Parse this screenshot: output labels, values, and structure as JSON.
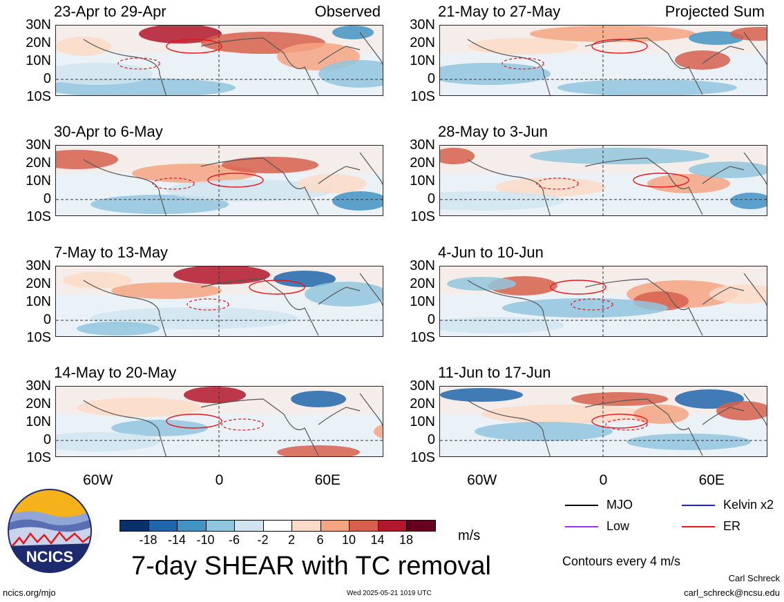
{
  "panels": [
    {
      "title": "23-Apr to 29-Apr",
      "corner": "Observed",
      "col": 0,
      "row": 0
    },
    {
      "title": "30-Apr to 6-May",
      "corner": "",
      "col": 0,
      "row": 1
    },
    {
      "title": "7-May to 13-May",
      "corner": "",
      "col": 0,
      "row": 2
    },
    {
      "title": "14-May to 20-May",
      "corner": "",
      "col": 0,
      "row": 3
    },
    {
      "title": "21-May to 27-May",
      "corner": "Projected Sum",
      "col": 1,
      "row": 0
    },
    {
      "title": "28-May to 3-Jun",
      "corner": "",
      "col": 1,
      "row": 1
    },
    {
      "title": "4-Jun to 10-Jun",
      "corner": "",
      "col": 1,
      "row": 2
    },
    {
      "title": "11-Jun to 17-Jun",
      "corner": "",
      "col": 1,
      "row": 3
    }
  ],
  "lat_labels": [
    "30N",
    "20N",
    "10N",
    "0",
    "10S"
  ],
  "lon_labels": [
    "60W",
    "0",
    "60E"
  ],
  "colorbar": {
    "colors": [
      "#08306b",
      "#2166ac",
      "#4393c3",
      "#92c5de",
      "#d1e5f0",
      "#ffffff",
      "#fddbc7",
      "#f4a582",
      "#d6604d",
      "#b2182b",
      "#67001f"
    ],
    "ticks": [
      "-18",
      "-14",
      "-10",
      "-6",
      "-2",
      "2",
      "6",
      "10",
      "14",
      "18"
    ],
    "unit": "m/s"
  },
  "main_title": "7-day SHEAR with TC removal",
  "legend": {
    "items": [
      {
        "label": "MJO",
        "color": "#000000"
      },
      {
        "label": "Kelvin x2",
        "color": "#1a1aff"
      },
      {
        "label": "Low",
        "color": "#9b30ff"
      },
      {
        "label": "ER",
        "color": "#e8141c"
      }
    ],
    "note": "Contours every 4 m/s"
  },
  "logo_text": "NCICS",
  "footer": {
    "url": "ncics.org/mjo",
    "timestamp": "Wed 2025-05-21 1019 UTC",
    "author": "Carl Schreck",
    "email": "carl_schreck@ncsu.edu"
  }
}
